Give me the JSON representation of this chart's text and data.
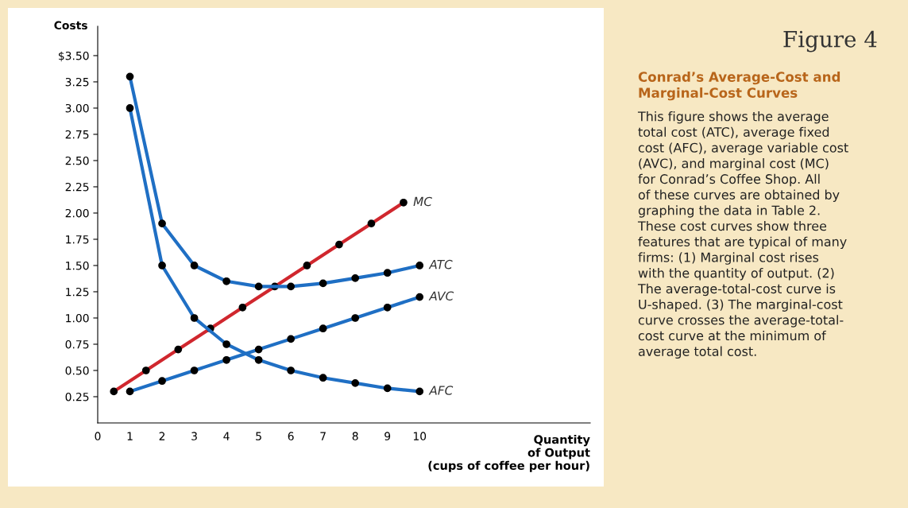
{
  "chart_data": {
    "type": "line",
    "title": "Figure 4",
    "subtitle": "Conrad’s Average-Cost and\nMarginal-Cost Curves",
    "annotations": [
      "This figure shows the average\ntotal cost (ATC), average fixed\ncost (AFC), average variable cost\n(AVC), and marginal cost (MC)\nfor Conrad’s Coffee Shop. All\nof these curves are obtained by\ngraphing the data in Table 2.\nThese cost curves show three\nfeatures that are typical of many\nfirms: (1) Marginal cost rises\nwith the quantity of output. (2)\nThe average-total-cost curve is\nU-shaped. (3) The marginal-cost\ncurve crosses the average-total-\ncost curve at the minimum of\naverage total cost."
    ],
    "xlabel": "Quantity\nof Output\n(cups of coffee per hour)",
    "ylabel": "Costs",
    "x": [
      1,
      2,
      3,
      4,
      5,
      6,
      7,
      8,
      9,
      10
    ],
    "series": [
      {
        "name": "MC",
        "color": "#d0272e",
        "x": [
          0.5,
          1.5,
          2.5,
          3.5,
          4.5,
          5.5,
          6.5,
          7.5,
          8.5,
          9.5
        ],
        "values": [
          0.3,
          0.5,
          0.7,
          0.9,
          1.1,
          1.3,
          1.5,
          1.7,
          1.9,
          2.1
        ]
      },
      {
        "name": "ATC",
        "color": "#1f6fc4",
        "values": [
          3.3,
          1.9,
          1.5,
          1.35,
          1.3,
          1.3,
          1.33,
          1.38,
          1.43,
          1.5
        ]
      },
      {
        "name": "AVC",
        "color": "#1f6fc4",
        "values": [
          0.3,
          0.4,
          0.5,
          0.6,
          0.7,
          0.8,
          0.9,
          1.0,
          1.1,
          1.2
        ]
      },
      {
        "name": "AFC",
        "color": "#1f6fc4",
        "values": [
          3.0,
          1.5,
          1.0,
          0.75,
          0.6,
          0.5,
          0.43,
          0.38,
          0.33,
          0.3
        ]
      }
    ],
    "xlim": [
      0,
      15.3
    ],
    "ylim": [
      0,
      3.78
    ],
    "xticks": [
      0,
      1,
      2,
      3,
      4,
      5,
      6,
      7,
      8,
      9,
      10
    ],
    "yticks": [
      0.25,
      {
        "value": 0.5,
        "label": "0.50"
      },
      0.75,
      {
        "value": 1,
        "label": "1.00"
      },
      1.25,
      {
        "value": 1.5,
        "label": "1.50"
      },
      1.75,
      {
        "value": 2,
        "label": "2.00"
      },
      2.25,
      {
        "value": 2.5,
        "label": "2.50"
      },
      2.75,
      {
        "value": 3,
        "label": "3.00"
      },
      3.25,
      {
        "value": 3.5,
        "label": "$3.50"
      }
    ],
    "marker": "circle",
    "line_style": "solid",
    "grid": false,
    "legend": false
  }
}
